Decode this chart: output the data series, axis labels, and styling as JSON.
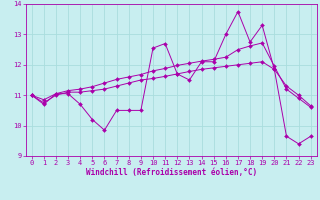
{
  "xlabel": "Windchill (Refroidissement éolien,°C)",
  "bg_color": "#c8eef0",
  "line_color": "#aa00aa",
  "grid_color": "#aadddd",
  "xlim": [
    -0.5,
    23.5
  ],
  "ylim": [
    9,
    14
  ],
  "xticks": [
    0,
    1,
    2,
    3,
    4,
    5,
    6,
    7,
    8,
    9,
    10,
    11,
    12,
    13,
    14,
    15,
    16,
    17,
    18,
    19,
    20,
    21,
    22,
    23
  ],
  "yticks": [
    9,
    10,
    11,
    12,
    13,
    14
  ],
  "line1_x": [
    0,
    1,
    2,
    3,
    4,
    5,
    6,
    7,
    8,
    9,
    10,
    11,
    12,
    13,
    14,
    15,
    16,
    17,
    18,
    19,
    20,
    21,
    22,
    23
  ],
  "line1_y": [
    11.0,
    10.7,
    11.05,
    11.05,
    10.7,
    10.2,
    9.85,
    10.5,
    10.5,
    10.5,
    12.55,
    12.7,
    11.7,
    11.5,
    12.1,
    12.1,
    13.0,
    13.75,
    12.75,
    13.3,
    11.85,
    9.65,
    9.4,
    9.65
  ],
  "line2_x": [
    0,
    1,
    2,
    3,
    4,
    5,
    6,
    7,
    8,
    9,
    10,
    11,
    12,
    13,
    14,
    15,
    16,
    17,
    18,
    19,
    20,
    21,
    22,
    23
  ],
  "line2_y": [
    11.0,
    10.75,
    11.0,
    11.1,
    11.1,
    11.15,
    11.2,
    11.3,
    11.4,
    11.5,
    11.55,
    11.62,
    11.7,
    11.78,
    11.85,
    11.9,
    11.95,
    12.0,
    12.05,
    12.1,
    11.85,
    11.3,
    11.0,
    10.65
  ],
  "line3_x": [
    0,
    1,
    2,
    3,
    4,
    5,
    6,
    7,
    8,
    9,
    10,
    11,
    12,
    13,
    14,
    15,
    16,
    17,
    18,
    19,
    20,
    21,
    22,
    23
  ],
  "line3_y": [
    11.0,
    10.85,
    11.05,
    11.15,
    11.2,
    11.28,
    11.4,
    11.52,
    11.6,
    11.68,
    11.8,
    11.88,
    11.98,
    12.05,
    12.12,
    12.18,
    12.25,
    12.5,
    12.62,
    12.72,
    11.95,
    11.2,
    10.9,
    10.6
  ]
}
